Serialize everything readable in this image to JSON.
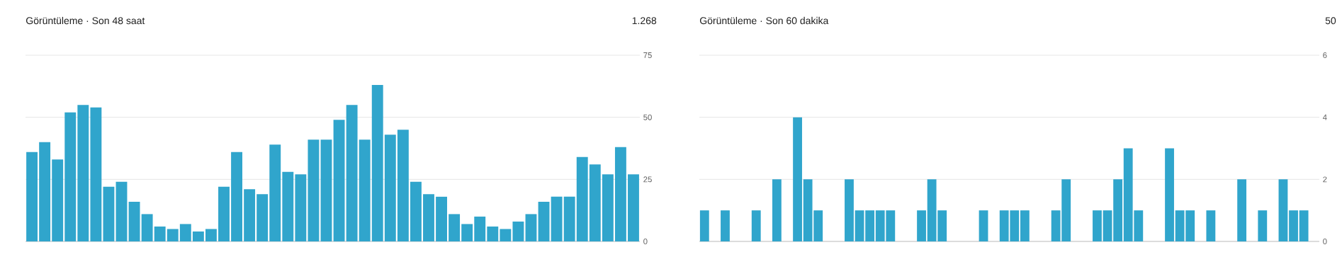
{
  "chart_data": [
    {
      "type": "bar",
      "title": "Görüntüleme · Son 48 saat",
      "annotations": [
        "1.268"
      ],
      "categories": [
        null,
        null,
        null,
        null,
        null,
        null,
        null,
        null,
        null,
        null,
        null,
        null,
        null,
        null,
        null,
        null,
        null,
        null,
        null,
        null,
        null,
        null,
        null,
        null,
        null,
        null,
        null,
        null,
        null,
        null,
        null,
        null,
        null,
        null,
        null,
        null,
        null,
        null,
        null,
        null,
        null,
        null,
        null,
        null,
        null,
        null,
        null,
        null
      ],
      "values": [
        36,
        40,
        33,
        52,
        55,
        54,
        22,
        24,
        16,
        11,
        6,
        5,
        7,
        4,
        5,
        22,
        36,
        21,
        19,
        39,
        28,
        27,
        41,
        41,
        49,
        55,
        41,
        63,
        43,
        45,
        24,
        19,
        18,
        11,
        7,
        10,
        6,
        5,
        8,
        11,
        16,
        18,
        18,
        34,
        31,
        27,
        38,
        27
      ],
      "color": "#30a5cc",
      "ylim": [
        0,
        75
      ],
      "yticks": [
        0,
        25,
        50,
        75
      ],
      "grid": "y",
      "tick_labels": "y"
    },
    {
      "type": "bar",
      "title": "Görüntüleme · Son 60 dakika",
      "annotations": [
        "50"
      ],
      "categories": [
        null,
        null,
        null,
        null,
        null,
        null,
        null,
        null,
        null,
        null,
        null,
        null,
        null,
        null,
        null,
        null,
        null,
        null,
        null,
        null,
        null,
        null,
        null,
        null,
        null,
        null,
        null,
        null,
        null,
        null,
        null,
        null,
        null,
        null,
        null,
        null,
        null,
        null,
        null,
        null,
        null,
        null,
        null,
        null,
        null,
        null,
        null,
        null,
        null,
        null,
        null,
        null,
        null,
        null,
        null,
        null,
        null,
        null,
        null,
        null
      ],
      "values": [
        1,
        0,
        1,
        0,
        0,
        1,
        0,
        2,
        0,
        4,
        2,
        1,
        0,
        0,
        2,
        1,
        1,
        1,
        1,
        0,
        0,
        1,
        2,
        1,
        0,
        0,
        0,
        1,
        0,
        1,
        1,
        1,
        0,
        0,
        1,
        2,
        0,
        0,
        1,
        1,
        2,
        3,
        1,
        0,
        0,
        3,
        1,
        1,
        0,
        1,
        0,
        0,
        2,
        0,
        1,
        0,
        2,
        1,
        1,
        0
      ],
      "color": "#30a5cc",
      "ylim": [
        0,
        6
      ],
      "yticks": [
        0,
        2,
        4,
        6
      ],
      "grid": "y",
      "tick_labels": "y"
    }
  ]
}
